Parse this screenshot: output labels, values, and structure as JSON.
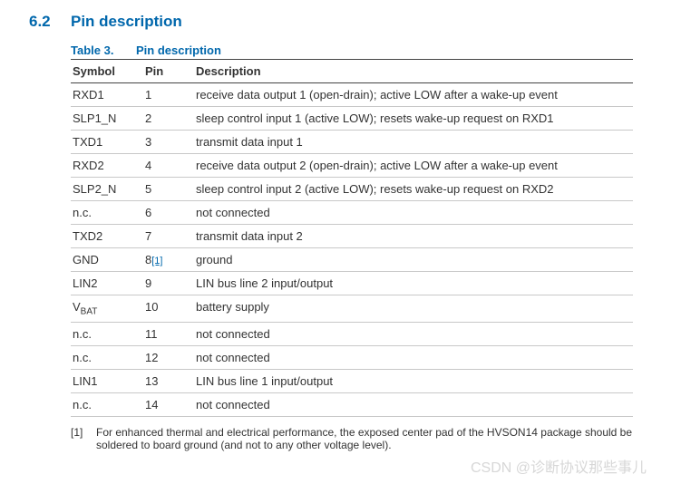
{
  "heading": {
    "number": "6.2",
    "title": "Pin description"
  },
  "table": {
    "label": "Table 3.",
    "title": "Pin description",
    "columns": [
      "Symbol",
      "Pin",
      "Description"
    ],
    "rows": [
      {
        "symbol": "RXD1",
        "symbol_sub": "",
        "pin": "1",
        "footref": "",
        "description": "receive data output 1 (open-drain); active LOW after a wake-up event"
      },
      {
        "symbol": "SLP1_N",
        "symbol_sub": "",
        "pin": "2",
        "footref": "",
        "description": "sleep control input 1 (active LOW); resets wake-up request on RXD1"
      },
      {
        "symbol": "TXD1",
        "symbol_sub": "",
        "pin": "3",
        "footref": "",
        "description": "transmit data input 1"
      },
      {
        "symbol": "RXD2",
        "symbol_sub": "",
        "pin": "4",
        "footref": "",
        "description": "receive data output 2 (open-drain); active LOW after a wake-up event"
      },
      {
        "symbol": "SLP2_N",
        "symbol_sub": "",
        "pin": "5",
        "footref": "",
        "description": "sleep control input 2 (active LOW); resets wake-up request on RXD2"
      },
      {
        "symbol": "n.c.",
        "symbol_sub": "",
        "pin": "6",
        "footref": "",
        "description": "not connected"
      },
      {
        "symbol": "TXD2",
        "symbol_sub": "",
        "pin": "7",
        "footref": "",
        "description": "transmit data input 2"
      },
      {
        "symbol": "GND",
        "symbol_sub": "",
        "pin": "8",
        "footref": "[1]",
        "description": "ground"
      },
      {
        "symbol": "LIN2",
        "symbol_sub": "",
        "pin": "9",
        "footref": "",
        "description": "LIN bus line 2 input/output"
      },
      {
        "symbol": "V",
        "symbol_sub": "BAT",
        "pin": "10",
        "footref": "",
        "description": "battery supply"
      },
      {
        "symbol": "n.c.",
        "symbol_sub": "",
        "pin": "11",
        "footref": "",
        "description": "not connected"
      },
      {
        "symbol": "n.c.",
        "symbol_sub": "",
        "pin": "12",
        "footref": "",
        "description": "not connected"
      },
      {
        "symbol": "LIN1",
        "symbol_sub": "",
        "pin": "13",
        "footref": "",
        "description": "LIN bus line 1 input/output"
      },
      {
        "symbol": "n.c.",
        "symbol_sub": "",
        "pin": "14",
        "footref": "",
        "description": "not connected"
      }
    ]
  },
  "footnotes": [
    {
      "num": "[1]",
      "text": "For enhanced thermal and electrical performance, the exposed center pad of the HVSON14 package should be soldered to board ground (and not to any other voltage level)."
    }
  ],
  "watermark": "CSDN @诊断协议那些事儿",
  "colors": {
    "heading": "#0067ac",
    "text": "#333333",
    "rule_dark": "#444444",
    "rule_light": "#c8c8c8",
    "watermark": "#d7d7d7",
    "background": "#ffffff"
  }
}
